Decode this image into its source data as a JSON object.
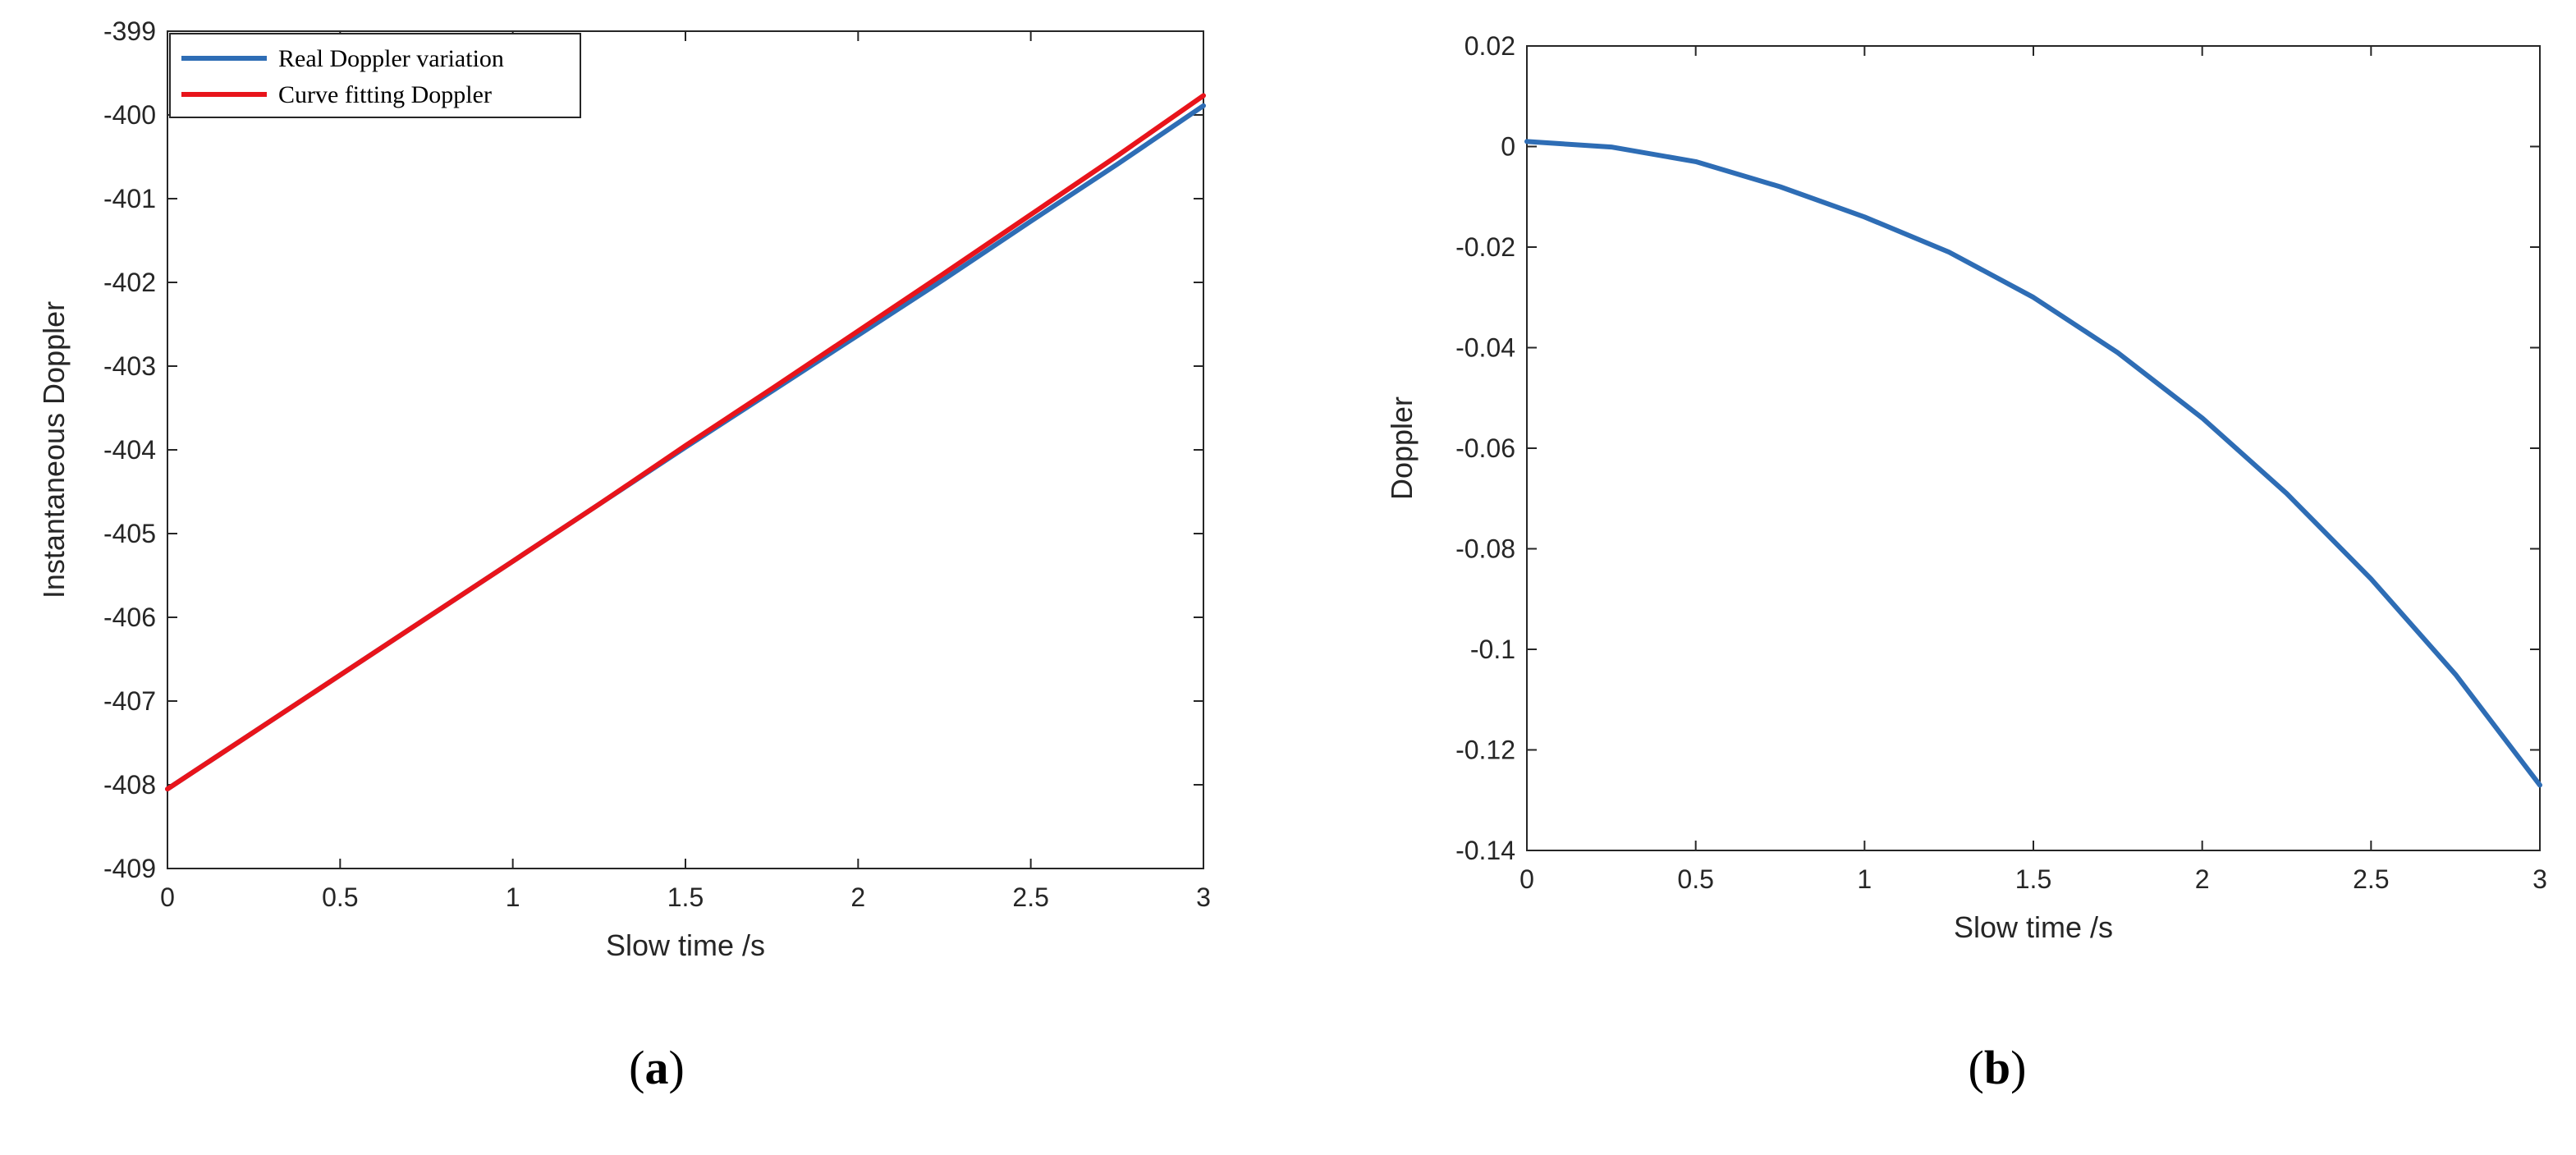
{
  "chart_data": [
    {
      "type": "line",
      "panel_label": "(a)",
      "panel_letter": "a",
      "title": "",
      "xlabel": "Slow time /s",
      "ylabel": "Instantaneous Doppler",
      "xlim": [
        0,
        3
      ],
      "ylim": [
        -409,
        -399
      ],
      "xticks": [
        0,
        0.5,
        1,
        1.5,
        2,
        2.5,
        3
      ],
      "xtick_labels": [
        "0",
        "0.5",
        "1",
        "1.5",
        "2",
        "2.5",
        "3"
      ],
      "yticks": [
        -409,
        -408,
        -407,
        -406,
        -405,
        -404,
        -403,
        -402,
        -401,
        -400,
        -399
      ],
      "ytick_labels": [
        "-409",
        "-408",
        "-407",
        "-406",
        "-405",
        "-404",
        "-403",
        "-402",
        "-401",
        "-400",
        "-399"
      ],
      "grid": false,
      "legend_position": "top-left",
      "series": [
        {
          "name": "Real Doppler variation",
          "color": "#2e6db5",
          "x": [
            0,
            0.25,
            0.5,
            0.75,
            1,
            1.25,
            1.5,
            1.75,
            2,
            2.25,
            2.5,
            2.75,
            3
          ],
          "y": [
            -408.05,
            -407.37,
            -406.69,
            -406.01,
            -405.33,
            -404.65,
            -403.97,
            -403.3,
            -402.63,
            -401.96,
            -401.27,
            -400.59,
            -399.89
          ]
        },
        {
          "name": "Curve fitting Doppler",
          "color": "#e8141b",
          "x": [
            0,
            0.25,
            0.5,
            0.75,
            1,
            1.25,
            1.5,
            1.75,
            2,
            2.25,
            2.5,
            2.75,
            3
          ],
          "y": [
            -408.05,
            -407.37,
            -406.69,
            -406.01,
            -405.33,
            -404.65,
            -403.95,
            -403.27,
            -402.58,
            -401.89,
            -401.19,
            -400.49,
            -399.77
          ]
        }
      ]
    },
    {
      "type": "line",
      "panel_label": "(b)",
      "panel_letter": "b",
      "title": "",
      "xlabel": "Slow time /s",
      "ylabel": "Doppler",
      "xlim": [
        0,
        3
      ],
      "ylim": [
        -0.14,
        0.02
      ],
      "xticks": [
        0,
        0.5,
        1,
        1.5,
        2,
        2.5,
        3
      ],
      "xtick_labels": [
        "0",
        "0.5",
        "1",
        "1.5",
        "2",
        "2.5",
        "3"
      ],
      "yticks": [
        -0.14,
        -0.12,
        -0.1,
        -0.08,
        -0.06,
        -0.04,
        -0.02,
        0,
        0.02
      ],
      "ytick_labels": [
        "-0.14",
        "-0.12",
        "-0.1",
        "-0.08",
        "-0.06",
        "-0.04",
        "-0.02",
        "0",
        "0.02"
      ],
      "grid": false,
      "series": [
        {
          "color": "#2e6db5",
          "x": [
            0,
            0.25,
            0.5,
            0.75,
            1,
            1.25,
            1.5,
            1.75,
            2,
            2.25,
            2.5,
            2.75,
            3
          ],
          "y": [
            0.001,
            -0.0001,
            -0.003,
            -0.008,
            -0.014,
            -0.021,
            -0.03,
            -0.041,
            -0.054,
            -0.069,
            -0.086,
            -0.105,
            -0.127
          ]
        }
      ]
    }
  ]
}
